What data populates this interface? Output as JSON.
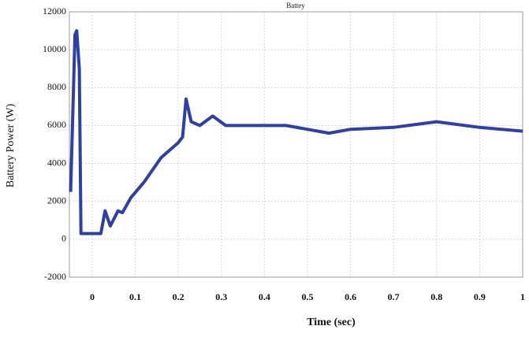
{
  "chart_data": {
    "type": "line",
    "title": "Battey",
    "xlabel": "Time (sec)",
    "ylabel": "Battery Power (W)",
    "x": [
      -0.05,
      -0.04,
      -0.036,
      -0.03,
      -0.026,
      0.02,
      0.03,
      0.042,
      0.06,
      0.07,
      0.09,
      0.12,
      0.16,
      0.2,
      0.21,
      0.218,
      0.23,
      0.25,
      0.28,
      0.31,
      0.45,
      0.55,
      0.6,
      0.7,
      0.8,
      0.9,
      1.0
    ],
    "series": [
      {
        "name": "Battery Power",
        "color": "#2e3fa6",
        "values": [
          2500,
          10800,
          11000,
          9000,
          300,
          300,
          1500,
          700,
          1500,
          1400,
          2200,
          3000,
          4300,
          5100,
          5400,
          7400,
          6200,
          6000,
          6500,
          6000,
          6000,
          5600,
          5800,
          5900,
          6200,
          5900,
          5700
        ]
      }
    ],
    "xlim": [
      -0.053,
      1.0
    ],
    "xticks": [
      0,
      0.1,
      0.2,
      0.3,
      0.4,
      0.5,
      0.6,
      0.7,
      0.8,
      0.9,
      1
    ],
    "ylim": [
      -2000,
      12000
    ],
    "yticks": [
      -2000,
      0,
      2000,
      4000,
      6000,
      8000,
      10000,
      12000
    ],
    "grid": true
  }
}
